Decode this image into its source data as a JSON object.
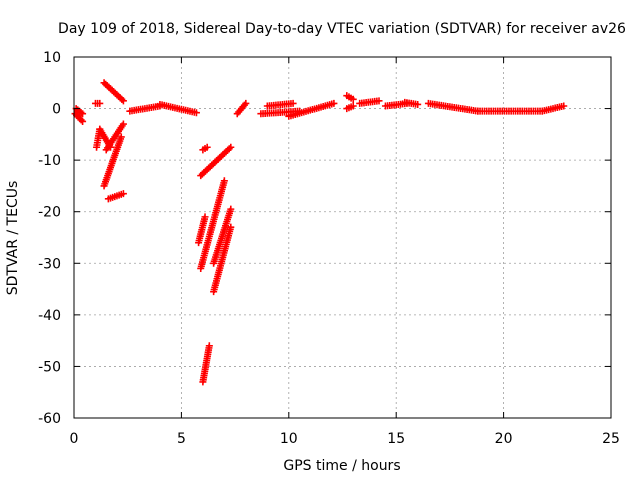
{
  "chart_data": {
    "type": "scatter",
    "title": "Day 109 of 2018, Sidereal Day-to-day VTEC variation (SDTVAR) for receiver av26",
    "xlabel": "GPS time / hours",
    "ylabel": "SDTVAR / TECUs",
    "xlim": [
      0,
      25
    ],
    "ylim": [
      -60,
      10
    ],
    "xticks": [
      0,
      5,
      10,
      15,
      20,
      25
    ],
    "yticks": [
      -60,
      -50,
      -40,
      -30,
      -20,
      -10,
      0,
      10
    ],
    "xtick_labels": [
      "0",
      "5",
      "10",
      "15",
      "20",
      "25"
    ],
    "ytick_labels": [
      "-60",
      "-50",
      "-40",
      "-30",
      "-20",
      "-10",
      "0",
      "10"
    ],
    "grid": true,
    "marker": "+",
    "series": [
      {
        "name": "SDTVAR",
        "color": "#ff0000",
        "segments": [
          {
            "x0": 0.05,
            "y0": -1.0,
            "x1": 0.4,
            "y1": -2.5
          },
          {
            "x0": 0.1,
            "y0": 0.0,
            "x1": 0.4,
            "y1": -1.0
          },
          {
            "x0": 1.0,
            "y0": 1.0,
            "x1": 1.2,
            "y1": 1.0
          },
          {
            "x0": 1.4,
            "y0": 5.0,
            "x1": 2.3,
            "y1": 1.5
          },
          {
            "x0": 1.05,
            "y0": -7.5,
            "x1": 1.2,
            "y1": -4.0
          },
          {
            "x0": 1.2,
            "y0": -4.0,
            "x1": 1.7,
            "y1": -7.5
          },
          {
            "x0": 1.5,
            "y0": -8.0,
            "x1": 2.3,
            "y1": -3.0
          },
          {
            "x0": 1.4,
            "y0": -15.0,
            "x1": 2.2,
            "y1": -5.5
          },
          {
            "x0": 1.6,
            "y0": -17.5,
            "x1": 2.3,
            "y1": -16.5
          },
          {
            "x0": 2.6,
            "y0": -0.5,
            "x1": 4.0,
            "y1": 0.5
          },
          {
            "x0": 4.0,
            "y0": 0.8,
            "x1": 5.7,
            "y1": -0.8
          },
          {
            "x0": 6.0,
            "y0": -8.0,
            "x1": 6.2,
            "y1": -7.5
          },
          {
            "x0": 5.9,
            "y0": -13.0,
            "x1": 7.3,
            "y1": -7.5
          },
          {
            "x0": 5.8,
            "y0": -26.0,
            "x1": 6.1,
            "y1": -21.0
          },
          {
            "x0": 5.9,
            "y0": -31.0,
            "x1": 7.0,
            "y1": -14.0
          },
          {
            "x0": 6.5,
            "y0": -30.0,
            "x1": 7.3,
            "y1": -19.5
          },
          {
            "x0": 6.5,
            "y0": -35.5,
            "x1": 7.3,
            "y1": -23.0
          },
          {
            "x0": 6.0,
            "y0": -53.0,
            "x1": 6.3,
            "y1": -46.0
          },
          {
            "x0": 7.6,
            "y0": -1.0,
            "x1": 8.0,
            "y1": 1.0
          },
          {
            "x0": 8.7,
            "y0": -1.0,
            "x1": 10.5,
            "y1": -0.5
          },
          {
            "x0": 9.0,
            "y0": 0.5,
            "x1": 10.2,
            "y1": 1.0
          },
          {
            "x0": 10.0,
            "y0": -1.5,
            "x1": 12.1,
            "y1": 1.0
          },
          {
            "x0": 12.7,
            "y0": 2.5,
            "x1": 13.0,
            "y1": 1.8
          },
          {
            "x0": 12.7,
            "y0": 0.0,
            "x1": 13.0,
            "y1": 0.5
          },
          {
            "x0": 13.3,
            "y0": 1.0,
            "x1": 14.2,
            "y1": 1.5
          },
          {
            "x0": 14.5,
            "y0": 0.5,
            "x1": 15.5,
            "y1": 1.0
          },
          {
            "x0": 15.4,
            "y0": 1.2,
            "x1": 16.0,
            "y1": 0.8
          },
          {
            "x0": 16.5,
            "y0": 1.0,
            "x1": 18.8,
            "y1": -0.5
          },
          {
            "x0": 18.8,
            "y0": -0.5,
            "x1": 21.8,
            "y1": -0.5
          },
          {
            "x0": 21.8,
            "y0": -0.5,
            "x1": 22.8,
            "y1": 0.5
          }
        ]
      }
    ]
  }
}
